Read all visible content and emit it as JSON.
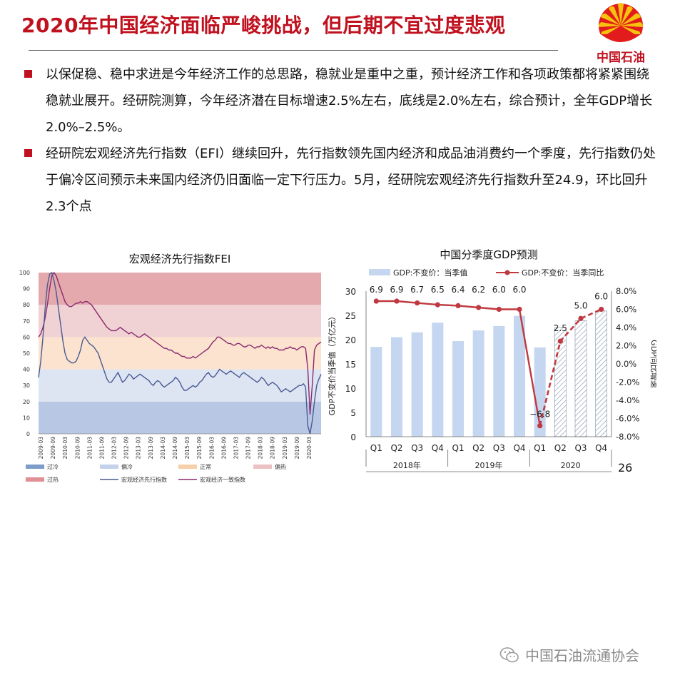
{
  "page": {
    "title": "2020年中国经济面临严峻挑战，但后期不宜过度悲观",
    "logo_text": "中国石油",
    "page_number": "26",
    "footer_text": "中国石油流通协会",
    "accent_color": "#c0111f"
  },
  "bullets": [
    "以保促稳、稳中求进是今年经济工作的总思路，稳就业是重中之重，预计经济工作和各项政策都将紧紧围绕稳就业展开。经研院测算，今年经济潜在目标增速2.5%左右，底线是2.0%左右，综合预计，全年GDP增长2.0%–2.5%。",
    "经研院宏观经济先行指数（EFI）继续回升，先行指数领先国内经济和成品油消费约一个季度，先行指数仍处于偏冷区间预示未来国内经济仍旧面临一定下行压力。5月，经研院宏观经济先行指数升至24.9，环比回升2.3个点"
  ],
  "chart_data": [
    {
      "type": "line",
      "title": "宏观经济先行指数FEI",
      "ylim": [
        0,
        100
      ],
      "y_ticks": [
        0,
        10,
        20,
        30,
        40,
        50,
        60,
        70,
        80,
        90,
        100
      ],
      "x_tick_labels": [
        "2009-03",
        "2009-09",
        "2010-03",
        "2010-09",
        "2011-03",
        "2011-09",
        "2012-03",
        "2012-09",
        "2013-03",
        "2013-09",
        "2014-03",
        "2014-09",
        "2015-03",
        "2015-09",
        "2016-03",
        "2016-09",
        "2017-03",
        "2017-09",
        "2018-03",
        "2018-09",
        "2019-03",
        "2019-09",
        "2020-03"
      ],
      "bands": [
        {
          "name": "过冷",
          "from": 0,
          "to": 20,
          "color": "#b8c8e4"
        },
        {
          "name": "偏冷",
          "from": 20,
          "to": 40,
          "color": "#dde5f3"
        },
        {
          "name": "正常",
          "from": 40,
          "to": 60,
          "color": "#fbe3cf"
        },
        {
          "name": "偏热",
          "from": 60,
          "to": 80,
          "color": "#f0d2d4"
        },
        {
          "name": "过热",
          "from": 80,
          "to": 100,
          "color": "#e3a9ac"
        }
      ],
      "legend": [
        {
          "label": "过冷",
          "color": "#7e9cc9",
          "kind": "band"
        },
        {
          "label": "偏冷",
          "color": "#c3d1ea",
          "kind": "band"
        },
        {
          "label": "正常",
          "color": "#f7cfa8",
          "kind": "band"
        },
        {
          "label": "偏热",
          "color": "#ebc1c4",
          "kind": "band"
        },
        {
          "label": "过热",
          "color": "#e08f95",
          "kind": "band"
        },
        {
          "label": "宏观经济先行指数",
          "color": "#4a5a93",
          "kind": "line"
        },
        {
          "label": "宏观经济一致指数",
          "color": "#8a2a6e",
          "kind": "line"
        }
      ],
      "series": [
        {
          "name": "宏观经济先行指数",
          "color": "#4a5a93",
          "values": [
            35,
            45,
            60,
            78,
            92,
            99,
            100,
            95,
            88,
            78,
            68,
            58,
            50,
            46,
            45,
            44,
            44,
            45,
            48,
            52,
            58,
            60,
            58,
            56,
            55,
            54,
            52,
            50,
            46,
            42,
            38,
            34,
            32,
            32,
            34,
            36,
            38,
            35,
            32,
            33,
            35,
            37,
            36,
            34,
            35,
            36,
            37,
            36,
            35,
            34,
            33,
            31,
            30,
            32,
            33,
            32,
            30,
            29,
            30,
            31,
            32,
            33,
            35,
            34,
            32,
            29,
            27,
            27,
            28,
            29,
            30,
            29,
            30,
            32,
            33,
            35,
            37,
            38,
            36,
            35,
            36,
            38,
            40,
            39,
            38,
            37,
            38,
            39,
            38,
            37,
            36,
            35,
            37,
            38,
            37,
            36,
            35,
            34,
            33,
            32,
            33,
            35,
            34,
            32,
            30,
            31,
            32,
            31,
            30,
            28,
            26,
            27,
            28,
            27,
            26,
            27,
            28,
            29,
            30,
            30,
            31,
            29,
            5,
            0,
            8,
            20,
            30,
            34,
            37
          ]
        },
        {
          "name": "宏观经济一致指数",
          "color": "#8a2a6e",
          "values": [
            60,
            62,
            66,
            72,
            80,
            90,
            98,
            100,
            98,
            94,
            90,
            86,
            82,
            80,
            79,
            79,
            80,
            81,
            81,
            82,
            81,
            82,
            82,
            81,
            80,
            78,
            76,
            74,
            72,
            70,
            68,
            66,
            65,
            64,
            64,
            64,
            65,
            66,
            65,
            64,
            63,
            62,
            63,
            62,
            61,
            60,
            60,
            61,
            62,
            61,
            60,
            59,
            58,
            57,
            56,
            55,
            54,
            53,
            53,
            52,
            52,
            51,
            50,
            50,
            49,
            48,
            48,
            47,
            47,
            47,
            48,
            47,
            48,
            49,
            50,
            51,
            52,
            53,
            55,
            57,
            58,
            60,
            60,
            59,
            58,
            57,
            56,
            56,
            55,
            55,
            56,
            56,
            55,
            54,
            54,
            55,
            55,
            54,
            53,
            54,
            54,
            55,
            54,
            53,
            54,
            53,
            54,
            53,
            53,
            52,
            52,
            52,
            53,
            53,
            54,
            53,
            53,
            52,
            53,
            54,
            54,
            53,
            40,
            12,
            30,
            52,
            55,
            56,
            57
          ]
        }
      ]
    },
    {
      "type": "bar",
      "title": "中国分季度GDP预测",
      "categories": [
        "Q1",
        "Q2",
        "Q3",
        "Q4",
        "Q1",
        "Q2",
        "Q3",
        "Q4",
        "Q1",
        "Q2",
        "Q3",
        "Q4"
      ],
      "year_groups": [
        {
          "label": "2018年",
          "span": 4
        },
        {
          "label": "2019年",
          "span": 4
        },
        {
          "label": "2020",
          "span": 4
        }
      ],
      "ylabel": "GDP不变价当季值（万亿元）",
      "ylim": [
        0,
        30
      ],
      "y_ticks": [
        0,
        5,
        10,
        15,
        20,
        25,
        30
      ],
      "y2label": "GDP同比增速",
      "y2lim": [
        -8,
        8
      ],
      "y2_ticks": [
        "-8.0%",
        "-6.0%",
        "-4.0%",
        "-2.0%",
        "0.0%",
        "2.0%",
        "4.0%",
        "6.0%",
        "8.0%"
      ],
      "series": [
        {
          "name": "GDP:不变价：当季值",
          "kind": "bar",
          "color": "#c5d7f0",
          "values": [
            18.5,
            20.5,
            21.5,
            23.5,
            19.7,
            21.9,
            22.8,
            24.9,
            18.4,
            22.5,
            23.9,
            25.9
          ],
          "forecast_from_index": 9
        },
        {
          "name": "GDP:不变价：当季同比",
          "kind": "line",
          "color": "#c0393f",
          "values": [
            6.9,
            6.9,
            6.7,
            6.5,
            6.4,
            6.2,
            6.0,
            6.0,
            -6.8,
            2.5,
            5.0,
            6.0
          ],
          "labels": [
            "6.9",
            "6.9",
            "6.7",
            "6.5",
            "6.4",
            "6.2",
            "6.0",
            "6.0",
            "−6.8",
            "2.5",
            "5.0",
            "6.0"
          ],
          "forecast_from_index": 8
        }
      ]
    }
  ]
}
